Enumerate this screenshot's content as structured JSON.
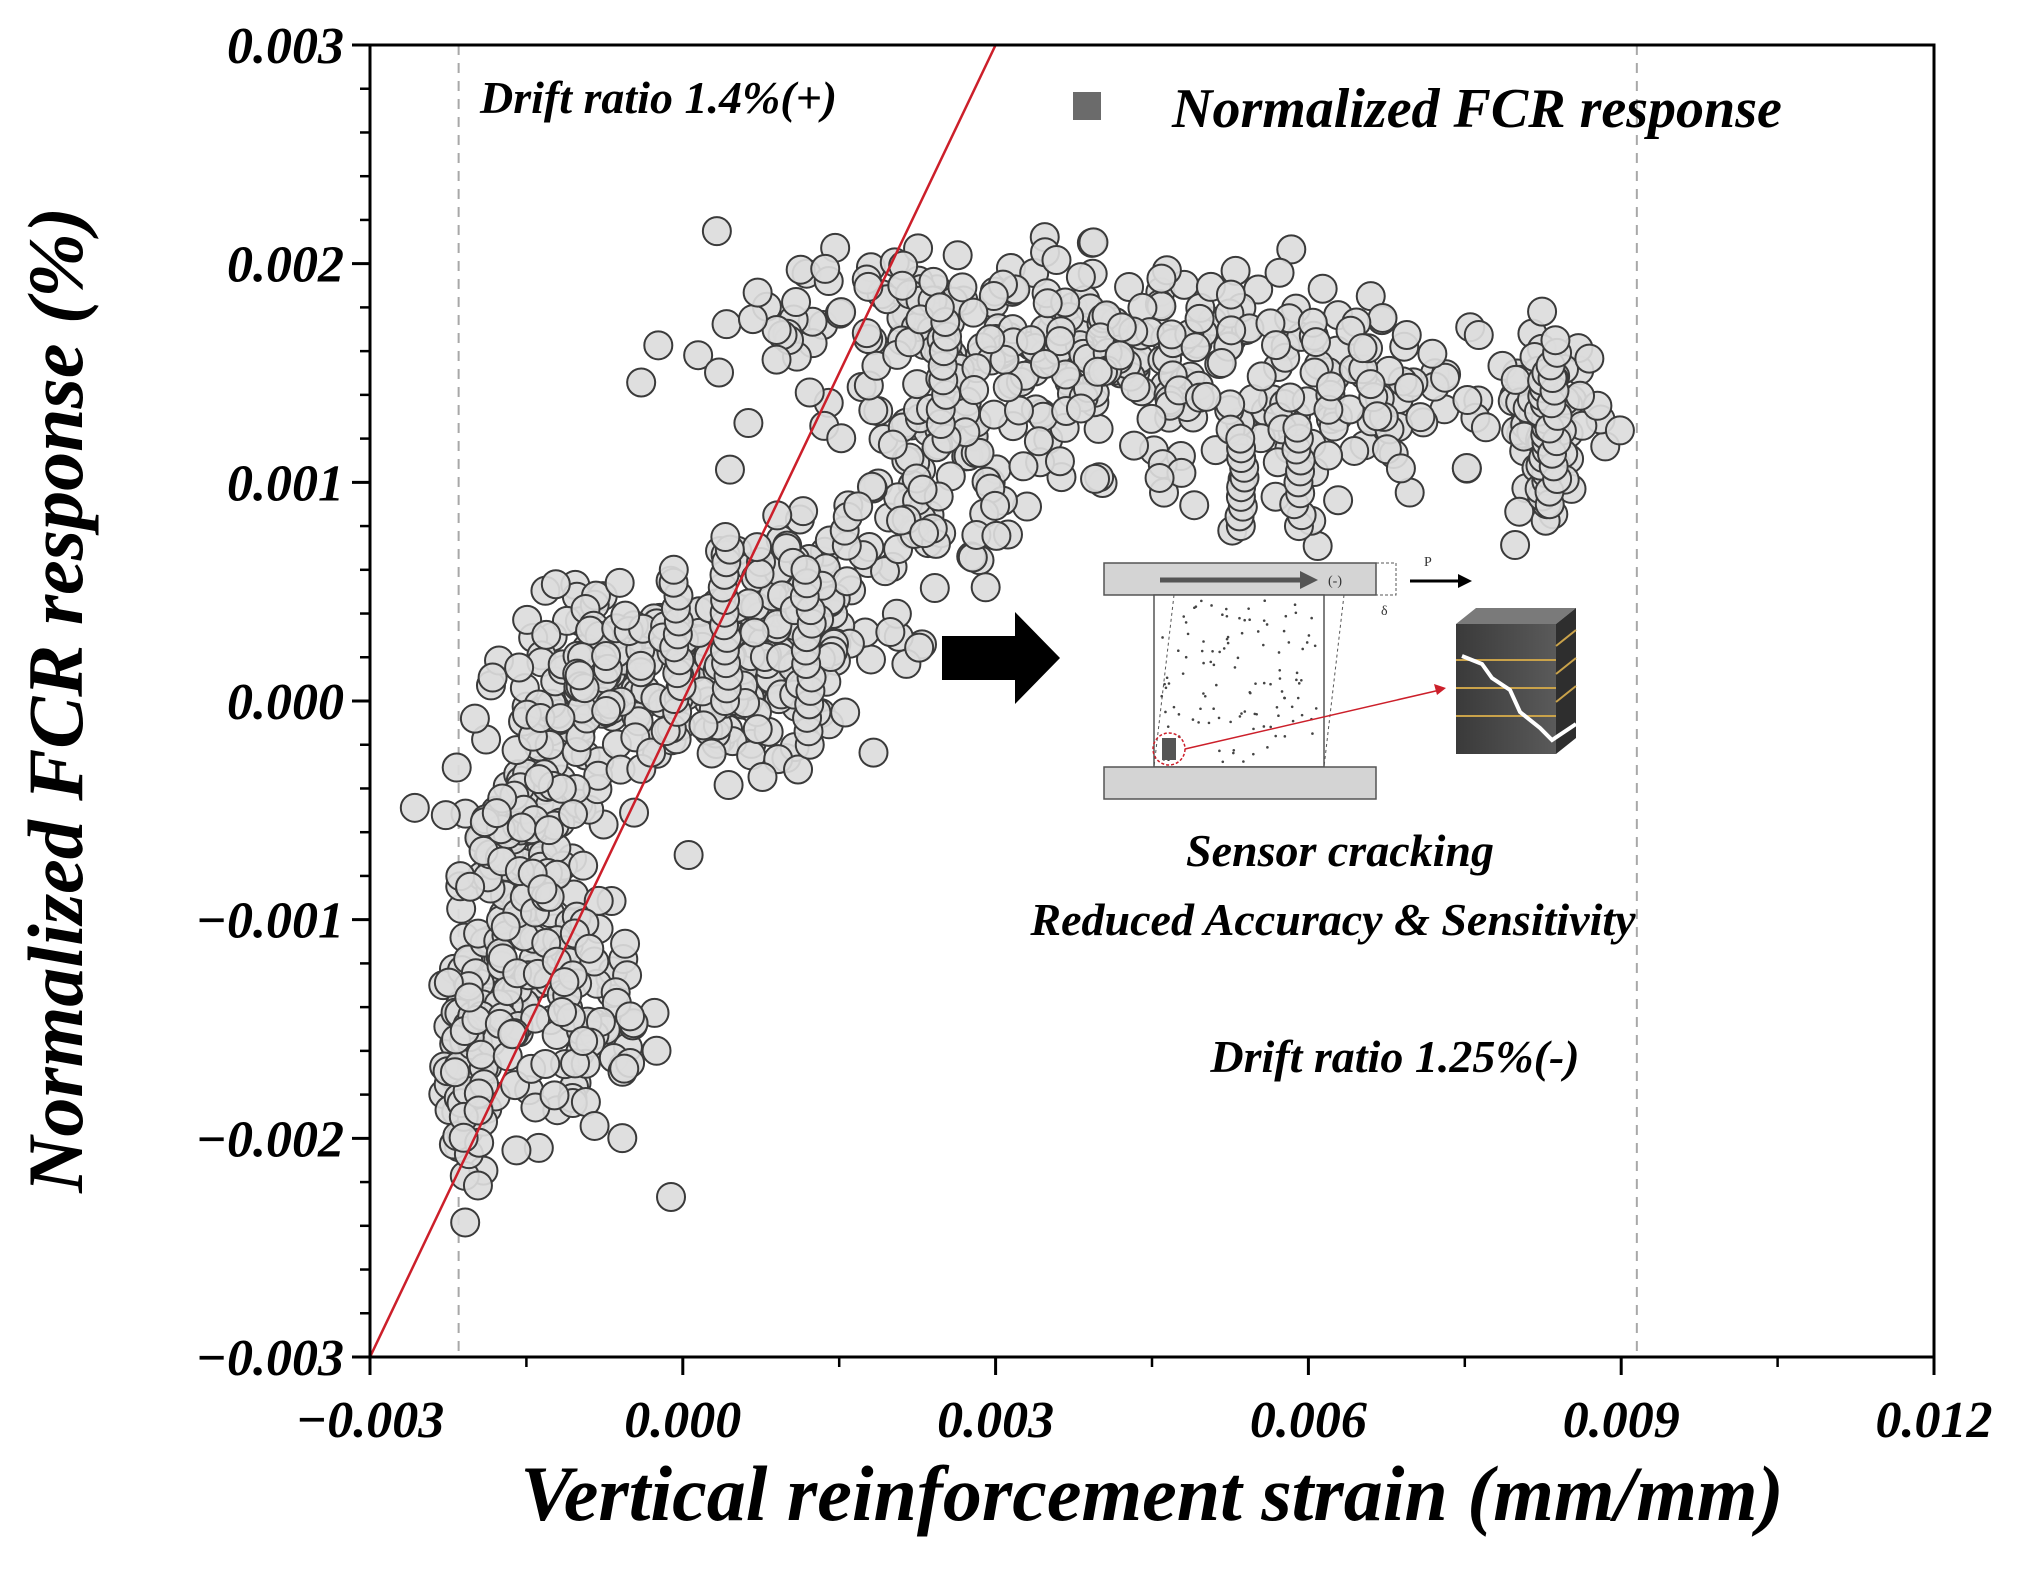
{
  "chart_data": {
    "type": "scatter",
    "xlabel": "Vertical reinforcement strain (mm/mm)",
    "ylabel": "Normalized FCR response (%)",
    "xlim": [
      -0.003,
      0.012
    ],
    "ylim": [
      -0.003,
      0.003
    ],
    "x_ticks": [
      "−0.003",
      "0.000",
      "0.003",
      "0.006",
      "0.009",
      "0.012"
    ],
    "y_ticks": [
      "−0.003",
      "−0.002",
      "−0.001",
      "0.000",
      "0.001",
      "0.002",
      "0.003"
    ],
    "x_tick_values": [
      -0.003,
      0.0,
      0.003,
      0.006,
      0.009,
      0.012
    ],
    "y_tick_values": [
      -0.003,
      -0.002,
      -0.001,
      0.0,
      0.001,
      0.002,
      0.003
    ],
    "grid": false,
    "legend": {
      "position": "top-right",
      "entries": [
        "Normalized FCR response"
      ]
    },
    "series": [
      {
        "name": "Normalized FCR response",
        "color": "#dcdcdc",
        "clusters": [
          {
            "x": -0.00205,
            "y": -0.00165,
            "sx": 0.00012,
            "sy": 0.00028,
            "n": 90
          },
          {
            "x": -0.0017,
            "y": -0.00095,
            "sx": 0.00025,
            "sy": 0.0004,
            "n": 110
          },
          {
            "x": -0.0013,
            "y": -0.0004,
            "sx": 0.0003,
            "sy": 0.0004,
            "n": 110
          },
          {
            "x": -0.0009,
            "y": -0.0015,
            "sx": 0.00035,
            "sy": 0.0003,
            "n": 70
          },
          {
            "x": -0.0007,
            "y": 0.0001,
            "sx": 0.0003,
            "sy": 0.00018,
            "n": 80
          },
          {
            "x": 0.0004,
            "y": 0.0001,
            "sx": 0.0006,
            "sy": 0.0002,
            "n": 130
          },
          {
            "x": 0.0012,
            "y": 0.0004,
            "sx": 0.0005,
            "sy": 0.00025,
            "n": 90
          },
          {
            "x": 0.0022,
            "y": 0.001,
            "sx": 0.0006,
            "sy": 0.00025,
            "n": 90
          },
          {
            "x": 0.0028,
            "y": 0.00165,
            "sx": 0.0008,
            "sy": 0.00022,
            "n": 120
          },
          {
            "x": 0.0045,
            "y": 0.00155,
            "sx": 0.0008,
            "sy": 0.00025,
            "n": 110
          },
          {
            "x": 0.0065,
            "y": 0.0014,
            "sx": 0.0009,
            "sy": 0.00022,
            "n": 110
          },
          {
            "x": 0.0083,
            "y": 0.0013,
            "sx": 0.00025,
            "sy": 0.0002,
            "n": 60
          },
          {
            "x": 0.0012,
            "y": 0.0017,
            "sx": 0.0008,
            "sy": 0.0002,
            "n": 30
          }
        ],
        "columns": [
          {
            "x": 0.00042,
            "y0": 0.0,
            "y1": 0.00075,
            "n": 14
          },
          {
            "x": -5e-05,
            "y0": -5e-05,
            "y1": 0.0006,
            "n": 12
          },
          {
            "x": 0.0012,
            "y0": -0.0002,
            "y1": 0.0006,
            "n": 14
          },
          {
            "x": 0.0025,
            "y0": 0.0012,
            "y1": 0.0018,
            "n": 10
          },
          {
            "x": 0.00535,
            "y0": 0.0008,
            "y1": 0.0012,
            "n": 10
          },
          {
            "x": 0.0059,
            "y0": 0.0008,
            "y1": 0.00125,
            "n": 10
          },
          {
            "x": 0.00825,
            "y0": 0.0009,
            "y1": 0.0015,
            "n": 18
          },
          {
            "x": 0.00835,
            "y0": 0.0009,
            "y1": 0.00165,
            "n": 14
          }
        ]
      }
    ],
    "reference_line": {
      "color": "#cc1f2a",
      "x0": -0.003,
      "y0": -0.003,
      "x1": 0.003,
      "y1": 0.003
    },
    "dashed_lines_x": [
      -0.00215,
      0.00915
    ],
    "annotations": {
      "drift_pos": "Drift ratio 1.4%(+)",
      "sensor_cracking": "Sensor cracking",
      "reduced": "Reduced Accuracy & Sensitivity",
      "drift_neg": "Drift ratio 1.25%(-)"
    },
    "inset": {
      "load_label": "P",
      "arrow_label": "(-)",
      "delta_label": "δ"
    }
  }
}
